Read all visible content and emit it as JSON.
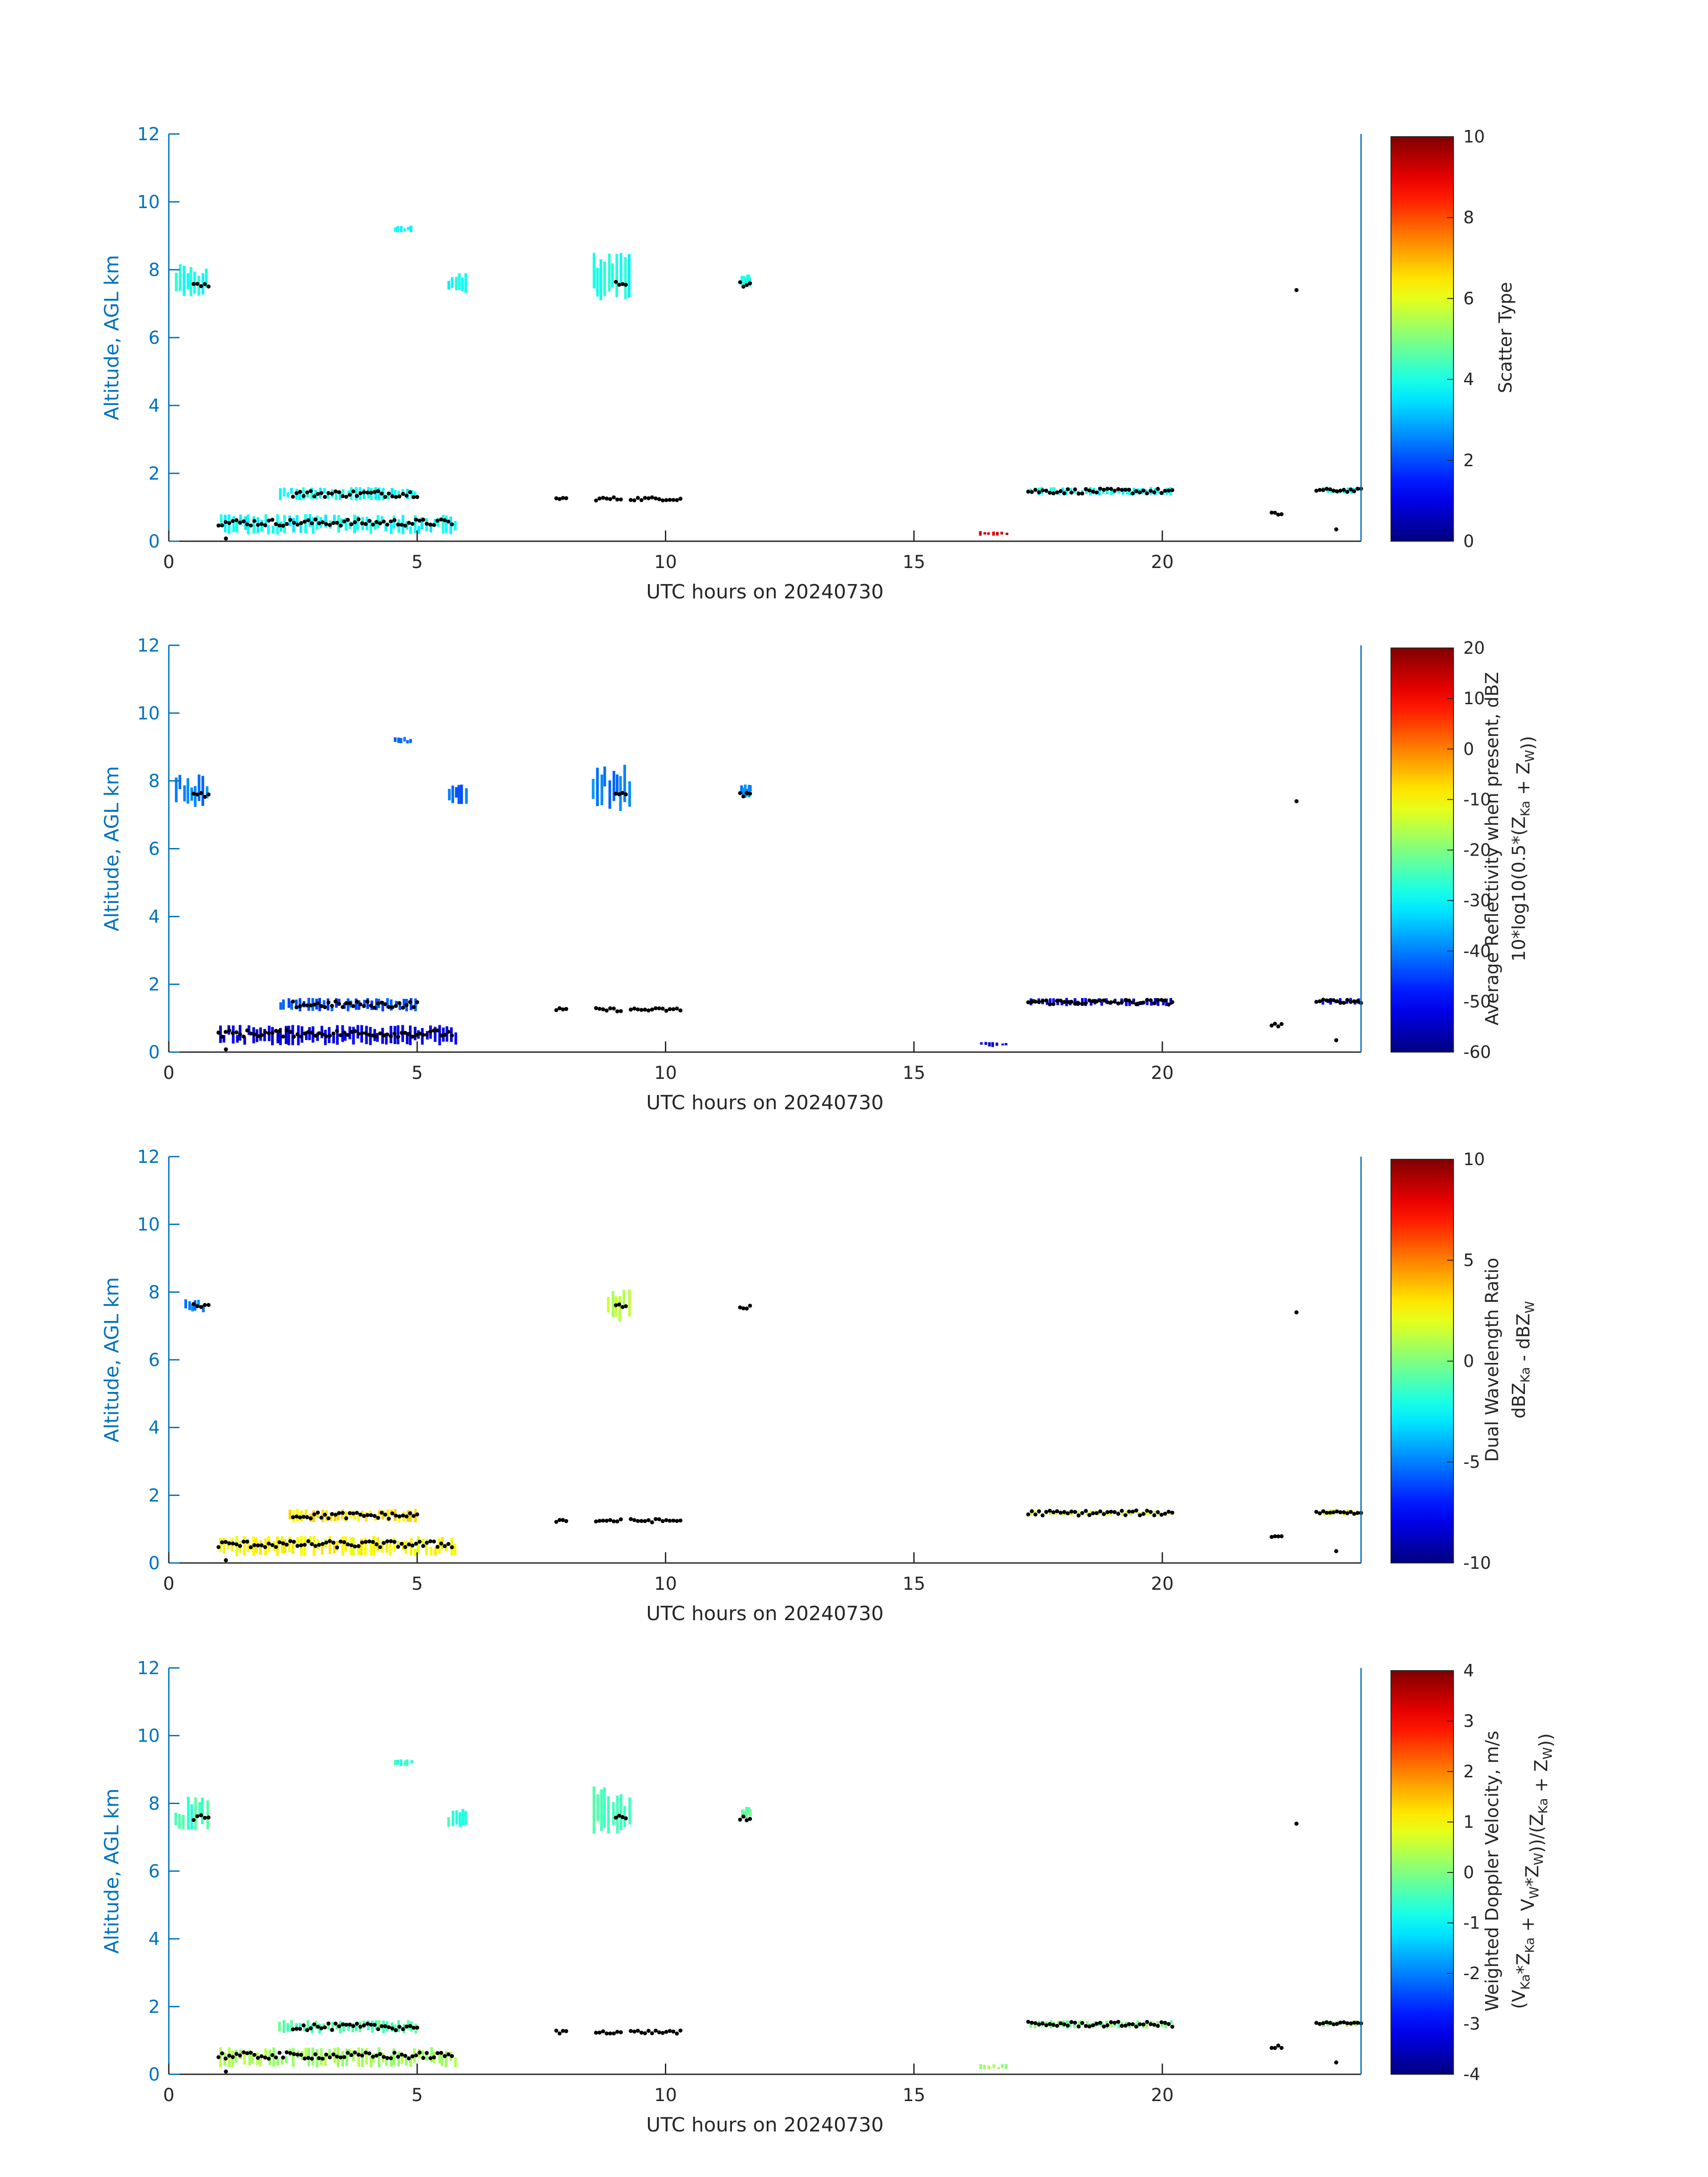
{
  "chart_data": [
    {
      "type": "scatter",
      "xlabel": "UTC hours on 20240730",
      "ylabel": "Altitude, AGL km",
      "xlim": [
        0,
        24
      ],
      "ylim": [
        0,
        12
      ],
      "xticks": [
        "0",
        "5",
        "10",
        "15",
        "20"
      ],
      "yticks": [
        "0",
        "2",
        "4",
        "6",
        "8",
        "10",
        "12"
      ],
      "colorbar": {
        "label_lines": [
          "Scatter Type"
        ],
        "ticks": [
          "0",
          "2",
          "4",
          "6",
          "8",
          "10"
        ],
        "range": [
          0,
          10
        ],
        "colormap": "jet"
      },
      "features": [
        {
          "x": [
            0.1,
            0.8
          ],
          "y": [
            7.2,
            8.2
          ],
          "value": 3.9
        },
        {
          "x": [
            4.5,
            4.9
          ],
          "y": [
            9.1,
            9.3
          ],
          "value": 3.9
        },
        {
          "x": [
            5.6,
            6.0
          ],
          "y": [
            7.3,
            7.9
          ],
          "value": 3.9
        },
        {
          "x": [
            8.5,
            9.3
          ],
          "y": [
            7.1,
            8.5
          ],
          "value": 3.9
        },
        {
          "x": [
            11.5,
            11.7
          ],
          "y": [
            7.5,
            7.9
          ],
          "value": 3.9
        },
        {
          "x": [
            2.2,
            5.0
          ],
          "y": [
            1.2,
            1.6
          ],
          "value": 3.8
        },
        {
          "x": [
            1.0,
            5.8
          ],
          "y": [
            0.2,
            0.8
          ],
          "value": 3.8
        },
        {
          "x": [
            17.3,
            20.2
          ],
          "y": [
            1.35,
            1.6
          ],
          "value": 3.8
        },
        {
          "x": [
            23.2,
            24.0
          ],
          "y": [
            1.4,
            1.6
          ],
          "value": 3.8
        },
        {
          "x": [
            16.3,
            16.9
          ],
          "y": [
            0.15,
            0.3
          ],
          "value": 9.2
        }
      ],
      "black_markers": [
        {
          "x": [
            0.5,
            0.8
          ],
          "y": [
            7.5,
            7.65
          ]
        },
        {
          "x": [
            9.0,
            9.2
          ],
          "y": [
            7.55,
            7.65
          ]
        },
        {
          "x": [
            11.5,
            11.7
          ],
          "y": [
            7.5,
            7.65
          ]
        },
        {
          "x": [
            2.5,
            5.0
          ],
          "y": [
            1.3,
            1.5
          ]
        },
        {
          "x": [
            1.0,
            5.7
          ],
          "y": [
            0.45,
            0.65
          ]
        },
        {
          "x": [
            7.8,
            8.0
          ],
          "y": [
            1.2,
            1.3
          ]
        },
        {
          "x": [
            8.6,
            9.1
          ],
          "y": [
            1.2,
            1.3
          ]
        },
        {
          "x": [
            9.3,
            10.3
          ],
          "y": [
            1.2,
            1.3
          ]
        },
        {
          "x": [
            17.3,
            20.2
          ],
          "y": [
            1.4,
            1.55
          ]
        },
        {
          "x": [
            22.2,
            22.4
          ],
          "y": [
            0.75,
            0.85
          ]
        },
        {
          "x": [
            23.1,
            24.0
          ],
          "y": [
            1.45,
            1.55
          ]
        },
        {
          "x": [
            22.7,
            22.7
          ],
          "y": [
            7.4,
            7.4
          ]
        },
        {
          "x": [
            23.5,
            23.5
          ],
          "y": [
            0.35,
            0.35
          ]
        },
        {
          "x": [
            1.15,
            1.15
          ],
          "y": [
            0.08,
            0.08
          ]
        }
      ]
    },
    {
      "type": "scatter",
      "xlabel": "UTC hours on 20240730",
      "ylabel": "Altitude, AGL km",
      "xlim": [
        0,
        24
      ],
      "ylim": [
        0,
        12
      ],
      "xticks": [
        "0",
        "5",
        "10",
        "15",
        "20"
      ],
      "yticks": [
        "0",
        "2",
        "4",
        "6",
        "8",
        "10",
        "12"
      ],
      "colorbar": {
        "label_lines": [
          "Average Reflectivity when present, dBZ",
          "10*log10(0.5*(Z_Ka + Z_W))"
        ],
        "ticks": [
          "-60",
          "-50",
          "-40",
          "-30",
          "-20",
          "-10",
          "0",
          "10",
          "20"
        ],
        "range": [
          -60,
          20
        ],
        "colormap": "jet"
      },
      "features": [
        {
          "x": [
            0.1,
            0.8
          ],
          "y": [
            7.2,
            8.2
          ],
          "value": -40
        },
        {
          "x": [
            4.5,
            4.9
          ],
          "y": [
            9.1,
            9.3
          ],
          "value": -42
        },
        {
          "x": [
            5.6,
            6.0
          ],
          "y": [
            7.3,
            7.9
          ],
          "value": -42
        },
        {
          "x": [
            8.5,
            9.3
          ],
          "y": [
            7.1,
            8.5
          ],
          "value": -40
        },
        {
          "x": [
            11.5,
            11.7
          ],
          "y": [
            7.5,
            7.9
          ],
          "value": -40
        },
        {
          "x": [
            2.2,
            5.0
          ],
          "y": [
            1.2,
            1.6
          ],
          "value": -44
        },
        {
          "x": [
            1.0,
            5.8
          ],
          "y": [
            0.2,
            0.8
          ],
          "value": -52
        },
        {
          "x": [
            17.3,
            20.2
          ],
          "y": [
            1.35,
            1.6
          ],
          "value": -52
        },
        {
          "x": [
            23.2,
            24.0
          ],
          "y": [
            1.4,
            1.6
          ],
          "value": -50
        },
        {
          "x": [
            16.3,
            16.9
          ],
          "y": [
            0.15,
            0.3
          ],
          "value": -52
        }
      ],
      "black_markers": [
        {
          "x": [
            0.5,
            0.8
          ],
          "y": [
            7.5,
            7.65
          ]
        },
        {
          "x": [
            9.0,
            9.2
          ],
          "y": [
            7.55,
            7.65
          ]
        },
        {
          "x": [
            11.5,
            11.7
          ],
          "y": [
            7.5,
            7.65
          ]
        },
        {
          "x": [
            2.5,
            5.0
          ],
          "y": [
            1.3,
            1.5
          ]
        },
        {
          "x": [
            1.0,
            5.7
          ],
          "y": [
            0.45,
            0.65
          ]
        },
        {
          "x": [
            7.8,
            8.0
          ],
          "y": [
            1.2,
            1.3
          ]
        },
        {
          "x": [
            8.6,
            9.1
          ],
          "y": [
            1.2,
            1.3
          ]
        },
        {
          "x": [
            9.3,
            10.3
          ],
          "y": [
            1.2,
            1.3
          ]
        },
        {
          "x": [
            17.3,
            20.2
          ],
          "y": [
            1.4,
            1.55
          ]
        },
        {
          "x": [
            22.2,
            22.4
          ],
          "y": [
            0.75,
            0.85
          ]
        },
        {
          "x": [
            23.1,
            24.0
          ],
          "y": [
            1.45,
            1.55
          ]
        },
        {
          "x": [
            22.7,
            22.7
          ],
          "y": [
            7.4,
            7.4
          ]
        },
        {
          "x": [
            23.5,
            23.5
          ],
          "y": [
            0.35,
            0.35
          ]
        },
        {
          "x": [
            1.15,
            1.15
          ],
          "y": [
            0.08,
            0.08
          ]
        }
      ]
    },
    {
      "type": "scatter",
      "xlabel": "UTC hours on 20240730",
      "ylabel": "Altitude, AGL km",
      "xlim": [
        0,
        24
      ],
      "ylim": [
        0,
        12
      ],
      "xticks": [
        "0",
        "5",
        "10",
        "15",
        "20"
      ],
      "yticks": [
        "0",
        "2",
        "4",
        "6",
        "8",
        "10",
        "12"
      ],
      "colorbar": {
        "label_lines": [
          "Dual Wavelength Ratio",
          "dBZ_Ka - dBZ_W"
        ],
        "ticks": [
          "-10",
          "-5",
          "0",
          "5",
          "10"
        ],
        "range": [
          -10,
          10
        ],
        "colormap": "jet"
      },
      "features": [
        {
          "x": [
            0.3,
            0.7
          ],
          "y": [
            7.4,
            7.8
          ],
          "value": -5
        },
        {
          "x": [
            8.8,
            9.3
          ],
          "y": [
            7.1,
            8.1
          ],
          "value": 1
        },
        {
          "x": [
            2.4,
            5.0
          ],
          "y": [
            1.2,
            1.6
          ],
          "value": 3.0
        },
        {
          "x": [
            1.0,
            5.8
          ],
          "y": [
            0.2,
            0.8
          ],
          "value": 2.5
        },
        {
          "x": [
            17.3,
            20.2
          ],
          "y": [
            1.4,
            1.55
          ],
          "value": 1.5
        },
        {
          "x": [
            23.2,
            24.0
          ],
          "y": [
            1.4,
            1.6
          ],
          "value": 2.0
        }
      ],
      "black_markers": [
        {
          "x": [
            0.5,
            0.8
          ],
          "y": [
            7.5,
            7.65
          ]
        },
        {
          "x": [
            9.0,
            9.2
          ],
          "y": [
            7.55,
            7.65
          ]
        },
        {
          "x": [
            11.5,
            11.7
          ],
          "y": [
            7.5,
            7.65
          ]
        },
        {
          "x": [
            2.5,
            5.0
          ],
          "y": [
            1.3,
            1.5
          ]
        },
        {
          "x": [
            1.0,
            5.7
          ],
          "y": [
            0.45,
            0.65
          ]
        },
        {
          "x": [
            7.8,
            8.0
          ],
          "y": [
            1.2,
            1.3
          ]
        },
        {
          "x": [
            8.6,
            9.1
          ],
          "y": [
            1.2,
            1.3
          ]
        },
        {
          "x": [
            9.3,
            10.3
          ],
          "y": [
            1.2,
            1.3
          ]
        },
        {
          "x": [
            17.3,
            20.2
          ],
          "y": [
            1.4,
            1.55
          ]
        },
        {
          "x": [
            22.2,
            22.4
          ],
          "y": [
            0.75,
            0.85
          ]
        },
        {
          "x": [
            23.1,
            24.0
          ],
          "y": [
            1.45,
            1.55
          ]
        },
        {
          "x": [
            22.7,
            22.7
          ],
          "y": [
            7.4,
            7.4
          ]
        },
        {
          "x": [
            23.5,
            23.5
          ],
          "y": [
            0.35,
            0.35
          ]
        },
        {
          "x": [
            1.15,
            1.15
          ],
          "y": [
            0.08,
            0.08
          ]
        }
      ]
    },
    {
      "type": "scatter",
      "xlabel": "UTC hours on 20240730",
      "ylabel": "Altitude, AGL km",
      "xlim": [
        0,
        24
      ],
      "ylim": [
        0,
        12
      ],
      "xticks": [
        "0",
        "5",
        "10",
        "15",
        "20"
      ],
      "yticks": [
        "0",
        "2",
        "4",
        "6",
        "8",
        "10",
        "12"
      ],
      "colorbar": {
        "label_lines": [
          "Weighted Doppler Velocity, m/s",
          "(V_Ka*Z_Ka + V_W*Z_W))/(Z_Ka + Z_W))"
        ],
        "ticks": [
          "-4",
          "-3",
          "-2",
          "-1",
          "0",
          "1",
          "2",
          "3",
          "4"
        ],
        "range": [
          -4,
          4
        ],
        "colormap": "jet"
      },
      "features": [
        {
          "x": [
            0.1,
            0.8
          ],
          "y": [
            7.2,
            8.2
          ],
          "value": -0.5
        },
        {
          "x": [
            4.5,
            4.9
          ],
          "y": [
            9.1,
            9.3
          ],
          "value": -0.6
        },
        {
          "x": [
            5.6,
            6.0
          ],
          "y": [
            7.3,
            7.9
          ],
          "value": -0.6
        },
        {
          "x": [
            8.5,
            9.3
          ],
          "y": [
            7.1,
            8.5
          ],
          "value": -0.5
        },
        {
          "x": [
            11.5,
            11.7
          ],
          "y": [
            7.5,
            7.9
          ],
          "value": -0.2
        },
        {
          "x": [
            2.2,
            5.0
          ],
          "y": [
            1.2,
            1.6
          ],
          "value": -0.3
        },
        {
          "x": [
            1.0,
            5.8
          ],
          "y": [
            0.2,
            0.8
          ],
          "value": 0.3
        },
        {
          "x": [
            17.3,
            20.2
          ],
          "y": [
            1.35,
            1.6
          ],
          "value": 0.0
        },
        {
          "x": [
            23.2,
            24.0
          ],
          "y": [
            1.4,
            1.6
          ],
          "value": 0.2
        },
        {
          "x": [
            16.3,
            16.9
          ],
          "y": [
            0.15,
            0.3
          ],
          "value": 0.2
        }
      ],
      "black_markers": [
        {
          "x": [
            0.5,
            0.8
          ],
          "y": [
            7.5,
            7.65
          ]
        },
        {
          "x": [
            9.0,
            9.2
          ],
          "y": [
            7.55,
            7.65
          ]
        },
        {
          "x": [
            11.5,
            11.7
          ],
          "y": [
            7.5,
            7.65
          ]
        },
        {
          "x": [
            2.5,
            5.0
          ],
          "y": [
            1.3,
            1.5
          ]
        },
        {
          "x": [
            1.0,
            5.7
          ],
          "y": [
            0.45,
            0.65
          ]
        },
        {
          "x": [
            7.8,
            8.0
          ],
          "y": [
            1.2,
            1.3
          ]
        },
        {
          "x": [
            8.6,
            9.1
          ],
          "y": [
            1.2,
            1.3
          ]
        },
        {
          "x": [
            9.3,
            10.3
          ],
          "y": [
            1.2,
            1.3
          ]
        },
        {
          "x": [
            17.3,
            20.2
          ],
          "y": [
            1.4,
            1.55
          ]
        },
        {
          "x": [
            22.2,
            22.4
          ],
          "y": [
            0.75,
            0.85
          ]
        },
        {
          "x": [
            23.1,
            24.0
          ],
          "y": [
            1.45,
            1.55
          ]
        },
        {
          "x": [
            22.7,
            22.7
          ],
          "y": [
            7.4,
            7.4
          ]
        },
        {
          "x": [
            23.5,
            23.5
          ],
          "y": [
            0.35,
            0.35
          ]
        },
        {
          "x": [
            1.15,
            1.15
          ],
          "y": [
            0.08,
            0.08
          ]
        }
      ]
    }
  ]
}
